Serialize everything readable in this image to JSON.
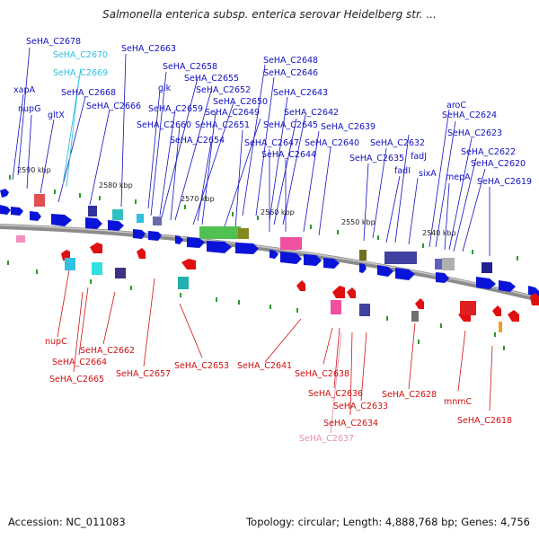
{
  "title": "Salmonella enterica subsp. enterica serovar Heidelberg str. ...",
  "footer": {
    "accession": "Accession: NC_011083",
    "topology": "Topology: circular; Length: 4,888,768 bp; Genes: 4,756"
  },
  "colors": {
    "forward": "#0a14d8",
    "reverse": "#e01010",
    "backbone": "#808080",
    "label_forward": "#1010c0",
    "label_reverse": "#d01010",
    "label_cyan": "#30c0e0",
    "label_pink": "#e890b0",
    "tick_marks": "#2a9a2a"
  },
  "scale_labels": [
    "2590 kbp",
    "2580 kbp",
    "2570 kbp",
    "2560 kbp",
    "2550 kbp",
    "2540 kbp"
  ],
  "top_labels": [
    "SeHA_C2678",
    "SeHA_C2670",
    "SeHA_C2669",
    "xapA",
    "nupG",
    "gltX",
    "SeHA_C2668",
    "SeHA_C2666",
    "SeHA_C2663",
    "SeHA_C2658",
    "glk",
    "SeHA_C2655",
    "SeHA_C2659",
    "SeHA_C2652",
    "SeHA_C2650",
    "SeHA_C2660",
    "SeHA_C2649",
    "SeHA_C2651",
    "SeHA_C2654",
    "SeHA_C2648",
    "SeHA_C2646",
    "SeHA_C2643",
    "SeHA_C2645",
    "SeHA_C2642",
    "SeHA_C2647",
    "SeHA_C2644",
    "SeHA_C2639",
    "SeHA_C2640",
    "SeHA_C2632",
    "SeHA_C2635",
    "fadI",
    "fadJ",
    "sixA",
    "aroC",
    "SeHA_C2624",
    "SeHA_C2623",
    "mepA",
    "SeHA_C2622",
    "SeHA_C2620",
    "SeHA_C2619"
  ],
  "bottom_labels": [
    "nupC",
    "SeHA_C2662",
    "SeHA_C2664",
    "SeHA_C2665",
    "SeHA_C2657",
    "SeHA_C2653",
    "SeHA_C2641",
    "SeHA_C2638",
    "SeHA_C2636",
    "SeHA_C2633",
    "SeHA_C2634",
    "SeHA_C2637",
    "SeHA_C2628",
    "mnmC",
    "SeHA_C2618"
  ]
}
